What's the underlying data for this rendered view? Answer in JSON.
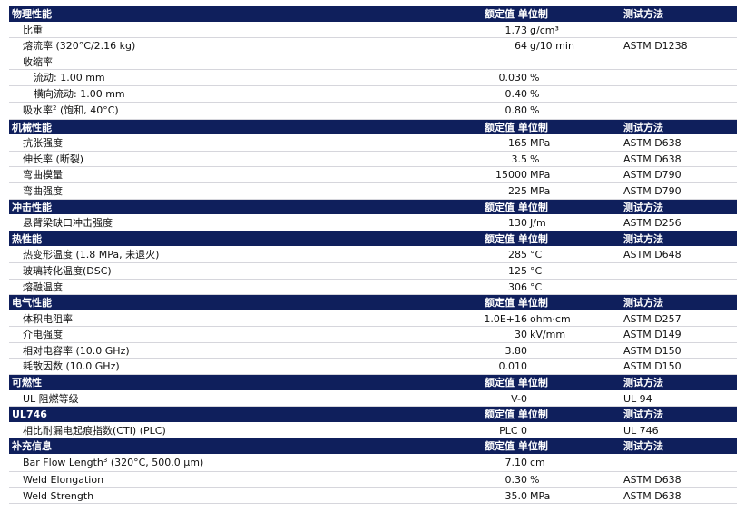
{
  "sections": [
    {
      "title": "物理性能",
      "hdr_value": "额定值",
      "hdr_unit": "单位制",
      "hdr_method": "测试方法",
      "rows": [
        {
          "name": "比重",
          "num": "1.73",
          "unit": "g/cm³",
          "method": ""
        },
        {
          "name": "熔流率 (320°C/2.16 kg)",
          "num": "64",
          "unit": "g/10 min",
          "method": "ASTM D1238"
        },
        {
          "name": "收缩率",
          "num": "",
          "unit": "",
          "method": ""
        },
        {
          "name": "流动: 1.00 mm",
          "num": "0.030",
          "unit": "%",
          "method": "",
          "sub": true
        },
        {
          "name": "横向流动: 1.00 mm",
          "num": "0.40",
          "unit": "%",
          "method": "",
          "sub": true
        },
        {
          "name": "吸水率",
          "sup": "2",
          "name_tail": " (饱和, 40°C)",
          "num": "0.80",
          "unit": "%",
          "method": ""
        }
      ]
    },
    {
      "title": "机械性能",
      "hdr_value": "额定值",
      "hdr_unit": "单位制",
      "hdr_method": "测试方法",
      "rows": [
        {
          "name": "抗张强度",
          "num": "165",
          "unit": "MPa",
          "method": "ASTM D638"
        },
        {
          "name": "伸长率 (断裂)",
          "num": "3.5",
          "unit": "%",
          "method": "ASTM D638"
        },
        {
          "name": "弯曲模量",
          "num": "15000",
          "unit": "MPa",
          "method": "ASTM D790"
        },
        {
          "name": "弯曲强度",
          "num": "225",
          "unit": "MPa",
          "method": "ASTM D790"
        }
      ]
    },
    {
      "title": "冲击性能",
      "hdr_value": "额定值",
      "hdr_unit": "单位制",
      "hdr_method": "测试方法",
      "rows": [
        {
          "name": "悬臂梁缺口冲击强度",
          "num": "130",
          "unit": "J/m",
          "method": "ASTM D256"
        }
      ]
    },
    {
      "title": "热性能",
      "hdr_value": "额定值",
      "hdr_unit": "单位制",
      "hdr_method": "测试方法",
      "rows": [
        {
          "name": "热变形温度 (1.8 MPa, 未退火)",
          "num": "285",
          "unit": "°C",
          "method": "ASTM D648"
        },
        {
          "name": "玻璃转化温度(DSC)",
          "num": "125",
          "unit": "°C",
          "method": ""
        },
        {
          "name": "熔融温度",
          "num": "306",
          "unit": "°C",
          "method": ""
        }
      ]
    },
    {
      "title": "电气性能",
      "hdr_value": "额定值",
      "hdr_unit": "单位制",
      "hdr_method": "测试方法",
      "rows": [
        {
          "name": "体积电阻率",
          "num": "1.0E+16",
          "unit": "ohm·cm",
          "method": "ASTM D257"
        },
        {
          "name": "介电强度",
          "num": "30",
          "unit": "kV/mm",
          "method": "ASTM D149"
        },
        {
          "name": "相对电容率 (10.0 GHz)",
          "num": "3.80",
          "unit": "",
          "method": "ASTM D150"
        },
        {
          "name": "耗散因数 (10.0 GHz)",
          "num": "0.010",
          "unit": "",
          "method": "ASTM D150"
        }
      ]
    },
    {
      "title": "可燃性",
      "hdr_value": "额定值",
      "hdr_unit": "单位制",
      "hdr_method": "测试方法",
      "rows": [
        {
          "name": "UL 阻燃等级",
          "num": "V-0",
          "unit": "",
          "method": "UL 94"
        }
      ]
    },
    {
      "title": "UL746",
      "hdr_value": "额定值",
      "hdr_unit": "单位制",
      "hdr_method": "测试方法",
      "rows": [
        {
          "name": "相比耐漏电起痕指数(CTI) (PLC)",
          "num": "PLC 0",
          "unit": "",
          "method": "UL 746"
        }
      ]
    },
    {
      "title": "补充信息",
      "hdr_value": "额定值",
      "hdr_unit": "单位制",
      "hdr_method": "测试方法",
      "rows": [
        {
          "name": "Bar Flow Length",
          "sup": "3",
          "name_tail": " (320°C, 500.0 µm)",
          "num": "7.10",
          "unit": "cm",
          "method": ""
        },
        {
          "name": "Weld Elongation",
          "num": "0.30",
          "unit": "%",
          "method": "ASTM D638"
        },
        {
          "name": "Weld Strength",
          "num": "35.0",
          "unit": "MPa",
          "method": "ASTM D638"
        }
      ]
    }
  ]
}
